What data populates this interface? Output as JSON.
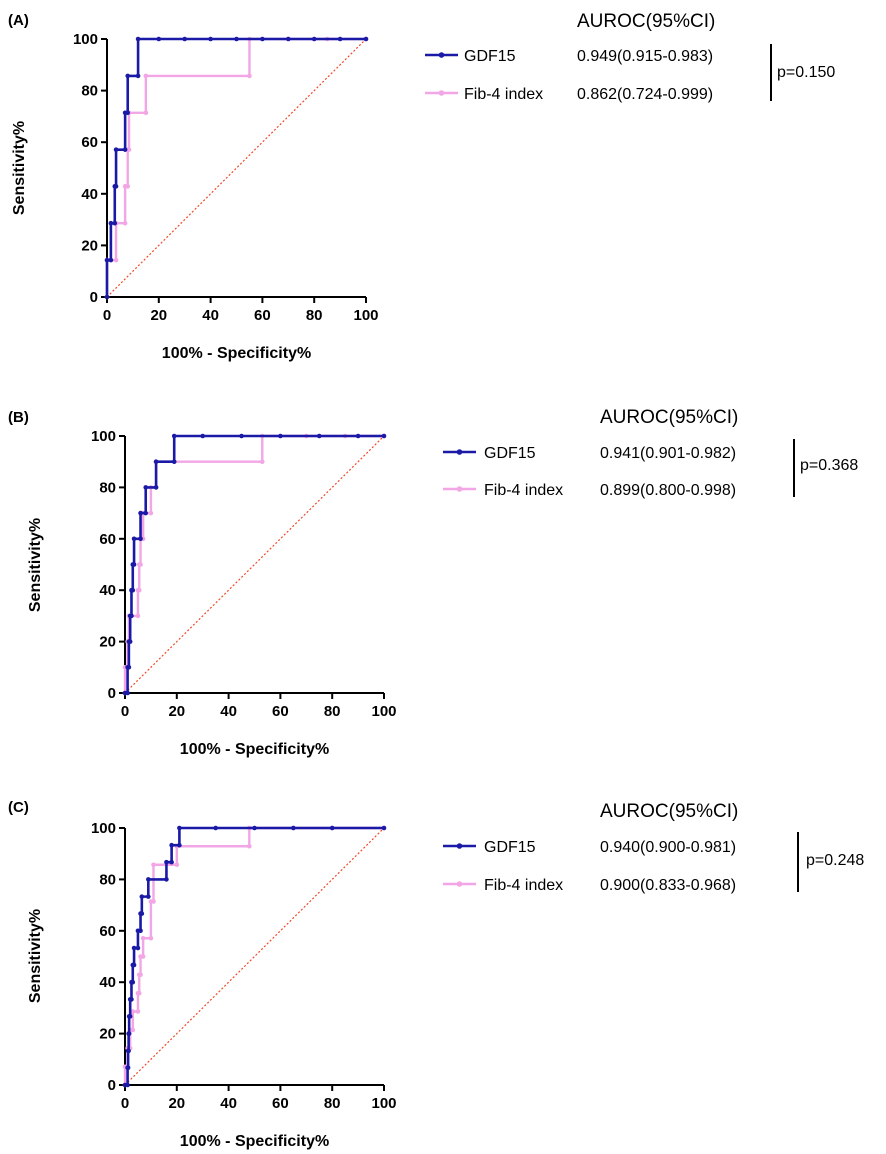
{
  "colors": {
    "gdf15": "#1a1aa6",
    "fib4": "#f2a6e6",
    "reference": "#f04a2a",
    "axis": "#000000"
  },
  "chart_data": [
    {
      "type": "line",
      "panel_label": "(A)",
      "xlabel": "100% - Specificity%",
      "ylabel": "Sensitivity%",
      "xlim": [
        0,
        100
      ],
      "ylim": [
        0,
        100
      ],
      "xticks": [
        0,
        20,
        40,
        60,
        80,
        100
      ],
      "yticks": [
        0,
        20,
        40,
        60,
        80,
        100
      ],
      "grid": false,
      "reference_line": [
        [
          0,
          0
        ],
        [
          100,
          100
        ]
      ],
      "legend_title": "AUROC(95%CI)",
      "p_value": "p=0.150",
      "series": [
        {
          "name": "GDF15",
          "color": "#1a1aa6",
          "legend_value": "0.949(0.915-0.983)",
          "points": [
            [
              0,
              0
            ],
            [
              0,
              14.3
            ],
            [
              1.5,
              14.3
            ],
            [
              1.5,
              28.6
            ],
            [
              3,
              28.6
            ],
            [
              3,
              42.9
            ],
            [
              3.5,
              42.9
            ],
            [
              3.5,
              57.1
            ],
            [
              7,
              57.1
            ],
            [
              7,
              71.4
            ],
            [
              8,
              71.4
            ],
            [
              8,
              85.7
            ],
            [
              12,
              85.7
            ],
            [
              12,
              100
            ],
            [
              20,
              100
            ],
            [
              30,
              100
            ],
            [
              40,
              100
            ],
            [
              50,
              100
            ],
            [
              60,
              100
            ],
            [
              70,
              100
            ],
            [
              80,
              100
            ],
            [
              90,
              100
            ],
            [
              100,
              100
            ]
          ]
        },
        {
          "name": "Fib-4 index",
          "color": "#f2a6e6",
          "legend_value": "0.862(0.724-0.999)",
          "points": [
            [
              0,
              0
            ],
            [
              0,
              14.3
            ],
            [
              3.5,
              14.3
            ],
            [
              3.5,
              28.6
            ],
            [
              7,
              28.6
            ],
            [
              7,
              42.9
            ],
            [
              8,
              42.9
            ],
            [
              8,
              57.1
            ],
            [
              8.5,
              57.1
            ],
            [
              8.5,
              71.4
            ],
            [
              15,
              71.4
            ],
            [
              15,
              85.7
            ],
            [
              55,
              85.7
            ],
            [
              55,
              100
            ],
            [
              70,
              100
            ],
            [
              85,
              100
            ],
            [
              100,
              100
            ]
          ]
        }
      ]
    },
    {
      "type": "line",
      "panel_label": "(B)",
      "xlabel": "100% - Specificity%",
      "ylabel": "Sensitivity%",
      "xlim": [
        0,
        100
      ],
      "ylim": [
        0,
        100
      ],
      "xticks": [
        0,
        20,
        40,
        60,
        80,
        100
      ],
      "yticks": [
        0,
        20,
        40,
        60,
        80,
        100
      ],
      "grid": false,
      "reference_line": [
        [
          0,
          0
        ],
        [
          100,
          100
        ]
      ],
      "legend_title": "AUROC(95%CI)",
      "p_value": "p=0.368",
      "series": [
        {
          "name": "GDF15",
          "color": "#1a1aa6",
          "legend_value": "0.941(0.901-0.982)",
          "points": [
            [
              0,
              0
            ],
            [
              1,
              0
            ],
            [
              1,
              10
            ],
            [
              1.5,
              10
            ],
            [
              1.5,
              20
            ],
            [
              2,
              20
            ],
            [
              2,
              30
            ],
            [
              2.5,
              30
            ],
            [
              2.5,
              40
            ],
            [
              3,
              40
            ],
            [
              3,
              50
            ],
            [
              3.5,
              50
            ],
            [
              3.5,
              60
            ],
            [
              6,
              60
            ],
            [
              6,
              70
            ],
            [
              8,
              70
            ],
            [
              8,
              80
            ],
            [
              12,
              80
            ],
            [
              12,
              90
            ],
            [
              19,
              90
            ],
            [
              19,
              100
            ],
            [
              30,
              100
            ],
            [
              45,
              100
            ],
            [
              60,
              100
            ],
            [
              75,
              100
            ],
            [
              90,
              100
            ],
            [
              100,
              100
            ]
          ]
        },
        {
          "name": "Fib-4 index",
          "color": "#f2a6e6",
          "legend_value": "0.899(0.800-0.998)",
          "points": [
            [
              0,
              0
            ],
            [
              0,
              10
            ],
            [
              1,
              10
            ],
            [
              1,
              20
            ],
            [
              1.5,
              20
            ],
            [
              1.5,
              30
            ],
            [
              5,
              30
            ],
            [
              5,
              40
            ],
            [
              5.5,
              40
            ],
            [
              5.5,
              50
            ],
            [
              6,
              50
            ],
            [
              6,
              60
            ],
            [
              7,
              60
            ],
            [
              7,
              70
            ],
            [
              10,
              70
            ],
            [
              10,
              80
            ],
            [
              12,
              80
            ],
            [
              12,
              90
            ],
            [
              53,
              90
            ],
            [
              53,
              100
            ],
            [
              70,
              100
            ],
            [
              85,
              100
            ],
            [
              100,
              100
            ]
          ]
        }
      ]
    },
    {
      "type": "line",
      "panel_label": "(C)",
      "xlabel": "100% - Specificity%",
      "ylabel": "Sensitivity%",
      "xlim": [
        0,
        100
      ],
      "ylim": [
        0,
        100
      ],
      "xticks": [
        0,
        20,
        40,
        60,
        80,
        100
      ],
      "yticks": [
        0,
        20,
        40,
        60,
        80,
        100
      ],
      "grid": false,
      "reference_line": [
        [
          0,
          0
        ],
        [
          100,
          100
        ]
      ],
      "legend_title": "AUROC(95%CI)",
      "p_value": "p=0.248",
      "series": [
        {
          "name": "GDF15",
          "color": "#1a1aa6",
          "legend_value": "0.940(0.900-0.981)",
          "points": [
            [
              0,
              0
            ],
            [
              1,
              0
            ],
            [
              1,
              6.7
            ],
            [
              1.2,
              6.7
            ],
            [
              1.2,
              13.3
            ],
            [
              1.4,
              13.3
            ],
            [
              1.4,
              20
            ],
            [
              1.6,
              20
            ],
            [
              1.6,
              26.7
            ],
            [
              2,
              26.7
            ],
            [
              2,
              33.3
            ],
            [
              2.5,
              33.3
            ],
            [
              2.5,
              40
            ],
            [
              3,
              40
            ],
            [
              3,
              46.7
            ],
            [
              3.5,
              46.7
            ],
            [
              3.5,
              53.3
            ],
            [
              5,
              53.3
            ],
            [
              5,
              60
            ],
            [
              6,
              60
            ],
            [
              6,
              66.7
            ],
            [
              6.5,
              66.7
            ],
            [
              6.5,
              73.3
            ],
            [
              9,
              73.3
            ],
            [
              9,
              80
            ],
            [
              16,
              80
            ],
            [
              16,
              86.7
            ],
            [
              18,
              86.7
            ],
            [
              18,
              93.3
            ],
            [
              21,
              93.3
            ],
            [
              21,
              100
            ],
            [
              35,
              100
            ],
            [
              50,
              100
            ],
            [
              65,
              100
            ],
            [
              80,
              100
            ],
            [
              100,
              100
            ]
          ]
        },
        {
          "name": "Fib-4 index",
          "color": "#f2a6e6",
          "legend_value": "0.900(0.833-0.968)",
          "points": [
            [
              0,
              0
            ],
            [
              0,
              7.1
            ],
            [
              1,
              7.1
            ],
            [
              1,
              14.3
            ],
            [
              2,
              14.3
            ],
            [
              2,
              21.4
            ],
            [
              3,
              21.4
            ],
            [
              3,
              28.6
            ],
            [
              5,
              28.6
            ],
            [
              5,
              35.7
            ],
            [
              5.5,
              35.7
            ],
            [
              5.5,
              42.9
            ],
            [
              6,
              42.9
            ],
            [
              6,
              50
            ],
            [
              7,
              50
            ],
            [
              7,
              57.1
            ],
            [
              10,
              57.1
            ],
            [
              10,
              71.4
            ],
            [
              11,
              71.4
            ],
            [
              11,
              85.7
            ],
            [
              20,
              85.7
            ],
            [
              20,
              92.9
            ],
            [
              48,
              92.9
            ],
            [
              48,
              100
            ],
            [
              65,
              100
            ],
            [
              80,
              100
            ],
            [
              100,
              100
            ]
          ]
        }
      ]
    }
  ]
}
